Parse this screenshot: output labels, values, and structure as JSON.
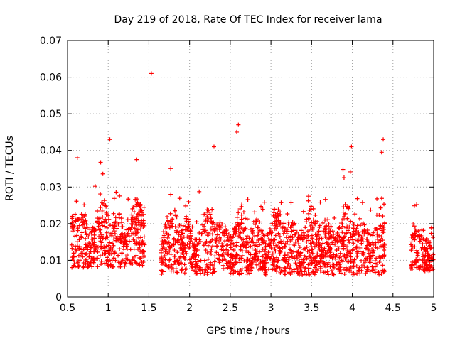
{
  "chart_data": {
    "type": "scatter",
    "title": "Day 219 of 2018, Rate Of TEC Index for receiver lama",
    "xlabel": "GPS time / hours",
    "ylabel": "ROTI / TECUs",
    "xlim": [
      0.5,
      5
    ],
    "ylim": [
      0,
      0.07
    ],
    "xticks": [
      0.5,
      1,
      1.5,
      2,
      2.5,
      3,
      3.5,
      4,
      4.5,
      5
    ],
    "xtick_labels": [
      "0.5",
      "1",
      "1.5",
      "2",
      "2.5",
      "3",
      "3.5",
      "4",
      "4.5",
      "5"
    ],
    "yticks": [
      0,
      0.01,
      0.02,
      0.03,
      0.04,
      0.05,
      0.06,
      0.07
    ],
    "ytick_labels": [
      "0",
      "0.01",
      "0.02",
      "0.03",
      "0.04",
      "0.05",
      "0.06",
      "0.07"
    ],
    "grid": true,
    "marker": "+",
    "color": "#ff0000",
    "segments": [
      {
        "x_start": 0.55,
        "x_end": 1.45,
        "base": 0.008,
        "spread": 0.02
      },
      {
        "x_start": 1.65,
        "x_end": 4.4,
        "base": 0.006,
        "spread": 0.02
      },
      {
        "x_start": 4.72,
        "x_end": 5.0,
        "base": 0.007,
        "spread": 0.013
      }
    ],
    "notable_points": [
      {
        "x": 1.53,
        "y": 0.061
      },
      {
        "x": 1.02,
        "y": 0.043
      },
      {
        "x": 2.6,
        "y": 0.047
      },
      {
        "x": 2.58,
        "y": 0.045
      },
      {
        "x": 2.3,
        "y": 0.041
      },
      {
        "x": 3.99,
        "y": 0.041
      },
      {
        "x": 4.38,
        "y": 0.043
      },
      {
        "x": 4.36,
        "y": 0.0395
      },
      {
        "x": 0.62,
        "y": 0.038
      },
      {
        "x": 1.35,
        "y": 0.0375
      }
    ]
  }
}
